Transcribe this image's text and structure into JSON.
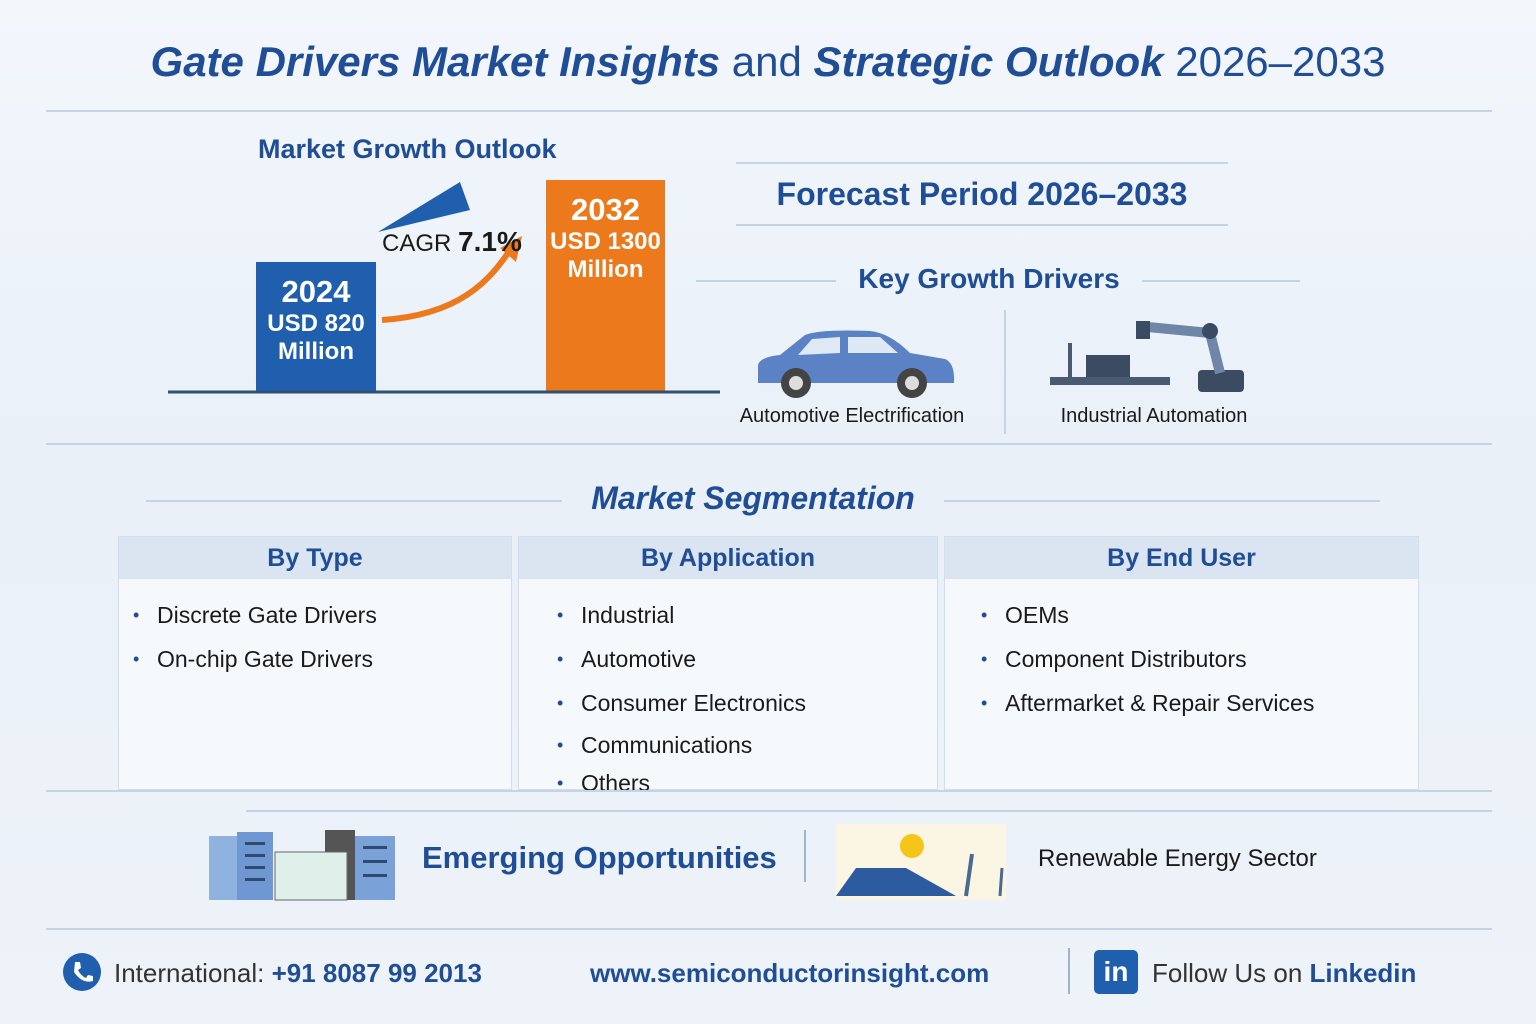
{
  "title": {
    "part1": "Gate Drivers Market Insights",
    "part2": "and",
    "part3": "Strategic Outlook",
    "part4": "2026–2033"
  },
  "growth": {
    "heading": "Market Growth Outlook",
    "bar1": {
      "year": "2024",
      "value": "USD 820",
      "unit": "Million"
    },
    "bar2": {
      "year": "2032",
      "value": "USD 1300",
      "unit": "Million"
    },
    "cagr_label": "CAGR",
    "cagr_value": "7.1%",
    "colors": {
      "bar1": "#1f5fad",
      "bar2": "#ec7a1c"
    }
  },
  "forecast": "Forecast Period 2026–2033",
  "drivers": {
    "heading": "Key Growth Drivers",
    "items": [
      {
        "label": "Automotive Electrification",
        "icon": "car-icon"
      },
      {
        "label": "Industrial Automation",
        "icon": "robot-arm-icon"
      }
    ]
  },
  "segmentation": {
    "heading": "Market Segmentation",
    "columns": [
      {
        "title": "By Type",
        "items": [
          "Discrete Gate Drivers",
          "On-chip Gate Drivers"
        ]
      },
      {
        "title": "By Application",
        "items": [
          "Industrial",
          "Automotive",
          "Consumer Electronics",
          "Communications",
          "Others"
        ]
      },
      {
        "title": "By End User",
        "items": [
          "OEMs",
          "Component Distributors",
          "Aftermarket & Repair Services"
        ]
      }
    ]
  },
  "opportunities": {
    "heading": "Emerging Opportunities",
    "item": "Renewable Energy Sector"
  },
  "footer": {
    "phone_label": "International:",
    "phone": "+91 8087 99 2013",
    "website": "www.semiconductorinsight.com",
    "follow": "Follow Us on",
    "linkedin": "Linkedin"
  }
}
